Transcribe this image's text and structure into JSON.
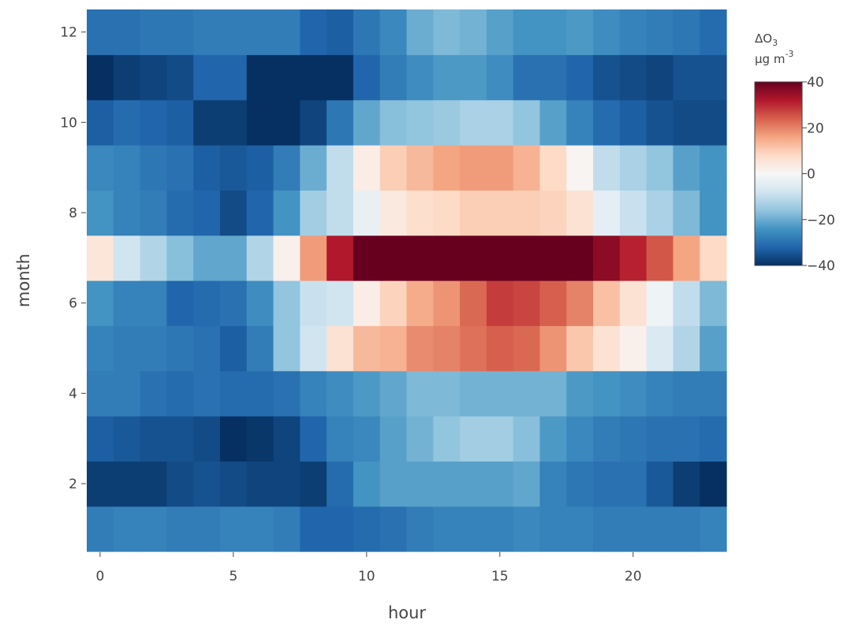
{
  "chart_data": {
    "type": "heatmap",
    "title": "",
    "xlabel": "hour",
    "ylabel": "month",
    "x": [
      0,
      1,
      2,
      3,
      4,
      5,
      6,
      7,
      8,
      9,
      10,
      11,
      12,
      13,
      14,
      15,
      16,
      17,
      18,
      19,
      20,
      21,
      22,
      23
    ],
    "y": [
      1,
      2,
      3,
      4,
      5,
      6,
      7,
      8,
      9,
      10,
      11,
      12
    ],
    "xlim": [
      -0.5,
      23.5
    ],
    "ylim": [
      0.5,
      12.5
    ],
    "x_ticks": [
      0,
      5,
      10,
      15,
      20
    ],
    "y_ticks": [
      2,
      4,
      6,
      8,
      10,
      12
    ],
    "z": [
      [
        -28,
        -27,
        -27,
        -28,
        -28,
        -27,
        -27,
        -28,
        -32,
        -32,
        -31,
        -30,
        -28,
        -27,
        -27,
        -27,
        -26,
        -27,
        -27,
        -28,
        -28,
        -28,
        -28,
        -27
      ],
      [
        -38,
        -38,
        -38,
        -36,
        -35,
        -36,
        -37,
        -37,
        -38,
        -31,
        -24,
        -22,
        -22,
        -22,
        -22,
        -22,
        -21,
        -27,
        -29,
        -30,
        -30,
        -34,
        -38,
        -40
      ],
      [
        -33,
        -34,
        -35,
        -35,
        -36,
        -40,
        -39,
        -37,
        -32,
        -27,
        -26,
        -22,
        -19,
        -16,
        -14,
        -14,
        -17,
        -23,
        -26,
        -28,
        -29,
        -30,
        -30,
        -31
      ],
      [
        -28,
        -28,
        -30,
        -31,
        -30,
        -31,
        -31,
        -30,
        -27,
        -25,
        -23,
        -21,
        -18,
        -18,
        -19,
        -19,
        -19,
        -19,
        -23,
        -24,
        -25,
        -27,
        -28,
        -28
      ],
      [
        -27,
        -28,
        -28,
        -29,
        -30,
        -33,
        -28,
        -16,
        -8,
        6,
        13,
        14,
        19,
        20,
        22,
        24,
        23,
        18,
        11,
        6,
        2,
        -6,
        -12,
        -22
      ],
      [
        -24,
        -27,
        -27,
        -32,
        -31,
        -30,
        -25,
        -16,
        -9,
        -8,
        3,
        9,
        15,
        18,
        23,
        28,
        27,
        24,
        20,
        12,
        6,
        -2,
        -10,
        -18
      ],
      [
        5,
        -8,
        -12,
        -17,
        -21,
        -21,
        -12,
        2,
        17,
        32,
        46,
        58,
        60,
        60,
        60,
        60,
        60,
        58,
        45,
        36,
        31,
        25,
        16,
        8
      ],
      [
        -24,
        -27,
        -28,
        -31,
        -32,
        -36,
        -32,
        -24,
        -14,
        -10,
        -3,
        4,
        7,
        8,
        10,
        10,
        10,
        9,
        6,
        -4,
        -9,
        -13,
        -18,
        -24
      ],
      [
        -26,
        -27,
        -29,
        -30,
        -33,
        -34,
        -33,
        -28,
        -20,
        -10,
        3,
        10,
        13,
        16,
        17,
        17,
        14,
        8,
        1,
        -10,
        -13,
        -16,
        -22,
        -24
      ],
      [
        -33,
        -31,
        -32,
        -33,
        -38,
        -38,
        -42,
        -45,
        -37,
        -29,
        -21,
        -17,
        -16,
        -15,
        -13,
        -13,
        -16,
        -22,
        -27,
        -31,
        -33,
        -35,
        -36,
        -36
      ],
      [
        -40,
        -38,
        -37,
        -36,
        -32,
        -32,
        -42,
        -45,
        -45,
        -40,
        -32,
        -28,
        -25,
        -23,
        -23,
        -25,
        -30,
        -30,
        -32,
        -35,
        -36,
        -37,
        -35,
        -35
      ],
      [
        -30,
        -30,
        -29,
        -29,
        -28,
        -28,
        -28,
        -28,
        -32,
        -33,
        -29,
        -26,
        -20,
        -18,
        -19,
        -22,
        -24,
        -24,
        -23,
        -25,
        -27,
        -28,
        -29,
        -31
      ]
    ],
    "colorscale": "RdBu",
    "zmin": -40,
    "zmax": 40,
    "colorbar": {
      "title_line1": "ΔO",
      "title_sub": "3",
      "title_line2": "µg m",
      "title_sup": "-3",
      "ticks": [
        40,
        20,
        0,
        -20,
        -40
      ],
      "tick_labels": [
        "40",
        "20",
        "0",
        "−20",
        "−40"
      ]
    },
    "grid": false,
    "legend": "colorbar-right"
  }
}
